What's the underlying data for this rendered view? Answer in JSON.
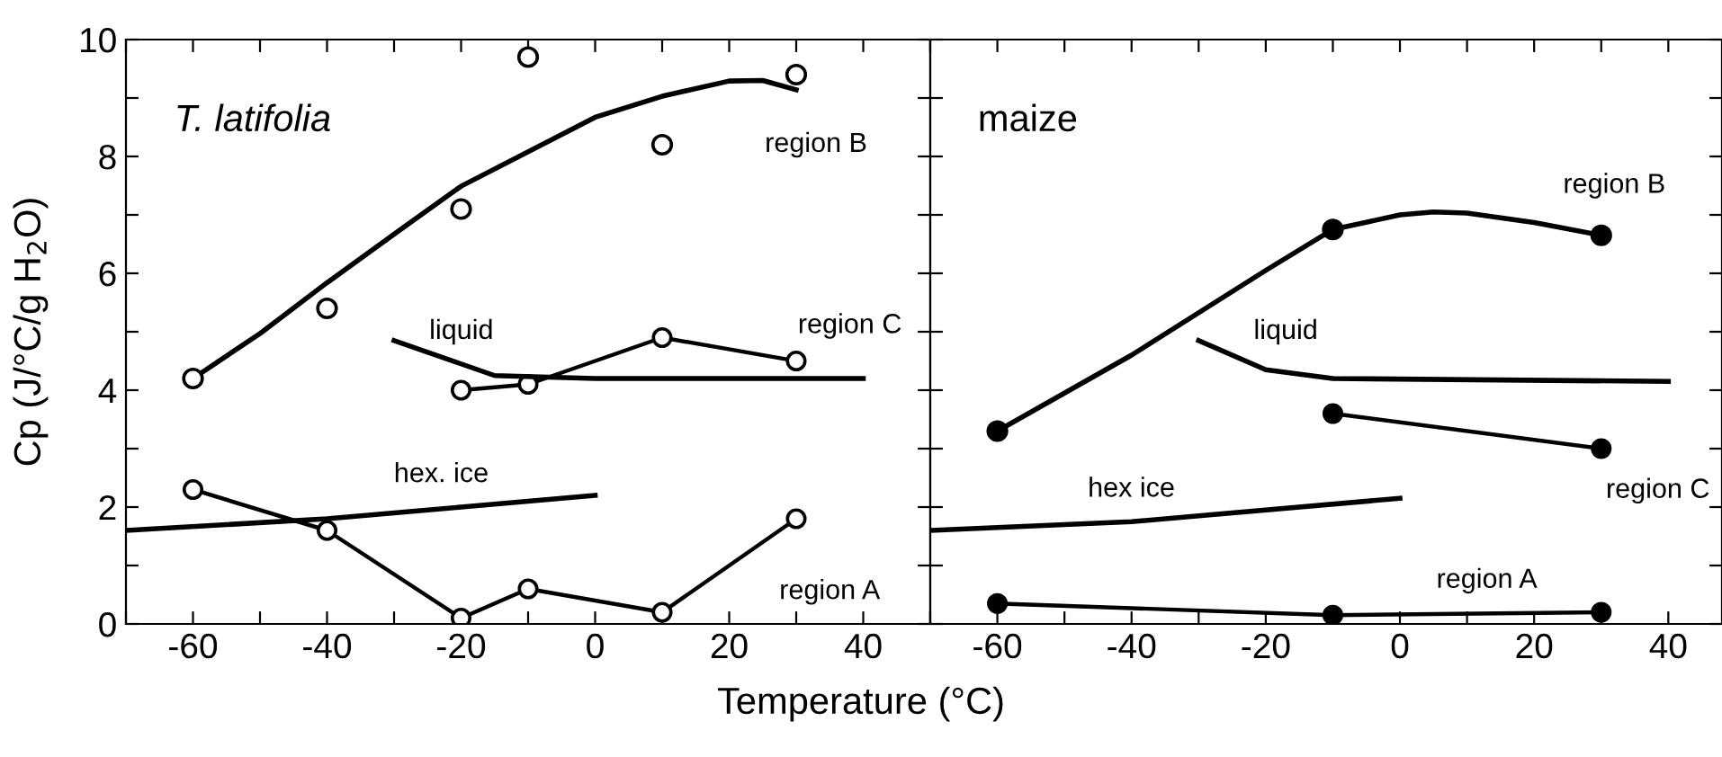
{
  "chart_data": [
    {
      "type": "line",
      "title": "T. latifolia",
      "ylabel": "Cp (J/°C/g H$_{2}$O)",
      "xlabel": "Temperature (°C)",
      "xlim": [
        -70,
        50
      ],
      "ylim": [
        0,
        10
      ],
      "xticks": [
        -60,
        -40,
        -20,
        0,
        20,
        40,
        {
          "value": -70,
          "label": null
        },
        {
          "value": -50,
          "label": null
        },
        {
          "value": -30,
          "label": null
        },
        {
          "value": -10,
          "label": null
        },
        {
          "value": 10,
          "label": null
        },
        {
          "value": 30,
          "label": null
        },
        {
          "value": 50,
          "label": null
        }
      ],
      "yticks": [
        0,
        2,
        4,
        6,
        8,
        10,
        {
          "value": 1,
          "label": null
        },
        {
          "value": 3,
          "label": null
        },
        {
          "value": 5,
          "label": null
        },
        {
          "value": 7,
          "label": null
        },
        {
          "value": 9,
          "label": null
        }
      ],
      "grid": false,
      "legend": false,
      "series": [
        {
          "type": "scatter",
          "marker": "circle",
          "color": "#000000",
          "x": [
            -60,
            -40,
            -20,
            -10,
            10,
            30
          ],
          "values": [
            4.2,
            5.4,
            7.1,
            9.7,
            8.2,
            9.4
          ]
        },
        {
          "marker": "none",
          "color": "#000000",
          "x": [
            -60,
            -50,
            -40,
            -30,
            -20,
            0,
            10,
            20,
            25,
            30
          ],
          "values": [
            4.2,
            4.97,
            5.84,
            6.67,
            7.49,
            8.67,
            9.03,
            9.29,
            9.3,
            9.14
          ]
        },
        {
          "marker": "circle",
          "color": "#000000",
          "x": [
            -20,
            -10,
            10,
            30
          ],
          "values": [
            4.0,
            4.1,
            4.9,
            4.5
          ]
        },
        {
          "marker": "circle",
          "color": "#000000",
          "x": [
            -60,
            -40,
            -20,
            -10,
            10,
            30
          ],
          "values": [
            2.3,
            1.6,
            0.1,
            0.6,
            0.2,
            1.8
          ]
        },
        {
          "marker": "none",
          "color": "#000000",
          "x": [
            -70,
            -40,
            -20,
            0
          ],
          "values": [
            1.6,
            1.8,
            2.0,
            2.2
          ]
        },
        {
          "marker": "none",
          "color": "#000000",
          "x": [
            -30,
            -20,
            -15,
            0,
            40
          ],
          "values": [
            4.85,
            4.45,
            4.25,
            4.2,
            4.2
          ]
        }
      ],
      "annotations": [
        "region B",
        "region C",
        "liquid",
        "hex. ice",
        "region A"
      ]
    },
    {
      "type": "line",
      "title": "maize",
      "xlim": [
        -70,
        48
      ],
      "ylim": [
        0,
        10
      ],
      "xticks": [
        -60,
        -40,
        -20,
        0,
        20,
        40,
        {
          "value": -70,
          "label": null
        },
        {
          "value": -50,
          "label": null
        },
        {
          "value": -30,
          "label": null
        },
        {
          "value": -10,
          "label": null
        },
        {
          "value": 10,
          "label": null
        },
        {
          "value": 30,
          "label": null
        }
      ],
      "yticks": [
        {
          "value": 0,
          "label": null
        },
        {
          "value": 1,
          "label": null
        },
        {
          "value": 2,
          "label": null
        },
        {
          "value": 3,
          "label": null
        },
        {
          "value": 4,
          "label": null
        },
        {
          "value": 5,
          "label": null
        },
        {
          "value": 6,
          "label": null
        },
        {
          "value": 7,
          "label": null
        },
        {
          "value": 8,
          "label": null
        },
        {
          "value": 9,
          "label": null
        },
        {
          "value": 10,
          "label": null
        }
      ],
      "tick_labels": "x",
      "grid": false,
      "legend": false,
      "series": [
        {
          "type": "scatter",
          "marker": "circle",
          "color": "#000000",
          "x": [
            -60,
            -10,
            30
          ],
          "values": [
            3.3,
            6.75,
            6.65
          ]
        },
        {
          "marker": "none",
          "color": "#000000",
          "x": [
            -60,
            -40,
            -20,
            -10,
            0,
            5,
            10,
            20,
            30
          ],
          "values": [
            3.3,
            4.6,
            6.05,
            6.75,
            7.0,
            7.05,
            7.03,
            6.87,
            6.65
          ]
        },
        {
          "marker": "circle",
          "color": "#000000",
          "x": [
            -10,
            30
          ],
          "values": [
            3.6,
            3.0
          ]
        },
        {
          "marker": "circle",
          "color": "#000000",
          "x": [
            -60,
            -10,
            30
          ],
          "values": [
            0.35,
            0.15,
            0.2
          ]
        },
        {
          "marker": "none",
          "color": "#000000",
          "x": [
            -70,
            -40,
            -30,
            0
          ],
          "values": [
            1.6,
            1.75,
            1.85,
            2.15
          ]
        },
        {
          "marker": "none",
          "color": "#000000",
          "x": [
            -30,
            -20,
            -10,
            40
          ],
          "values": [
            4.85,
            4.35,
            4.2,
            4.15
          ]
        }
      ],
      "annotations": [
        "region B",
        "liquid",
        "hex ice",
        "region C",
        "region A"
      ]
    }
  ]
}
